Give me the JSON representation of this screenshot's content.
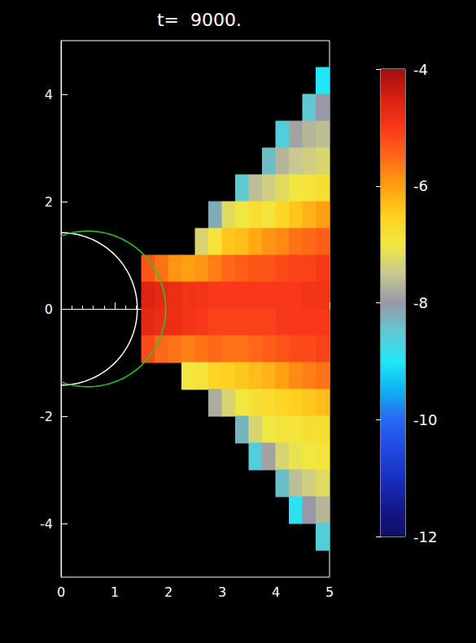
{
  "chart_data": {
    "type": "heatmap",
    "title": "t=  9000.",
    "xlim": [
      0,
      5
    ],
    "xticks": [
      0,
      1,
      2,
      3,
      4,
      5
    ],
    "ylim": [
      -5,
      5
    ],
    "yticks": [
      -4,
      -2,
      0,
      2,
      4
    ],
    "grid": false,
    "colorbar": {
      "range": [
        -12,
        -4
      ],
      "ticks": [
        -12,
        -10,
        -8,
        -6,
        -4
      ]
    },
    "circles": [
      {
        "center": [
          0,
          0
        ],
        "radius": 1.42,
        "color": "white"
      },
      {
        "center": [
          0.5,
          0
        ],
        "radius": 1.45,
        "color": "green"
      }
    ],
    "cells": [
      [
        1.625,
        0.75,
        -5.3
      ],
      [
        1.625,
        0.25,
        -4.6
      ],
      [
        1.625,
        -0.25,
        -4.7
      ],
      [
        1.625,
        -0.75,
        -5.2
      ],
      [
        1.875,
        0.75,
        -5.6
      ],
      [
        1.875,
        0.25,
        -4.7
      ],
      [
        1.875,
        -0.25,
        -4.8
      ],
      [
        1.875,
        -0.75,
        -5.5
      ],
      [
        2.125,
        0.75,
        -5.9
      ],
      [
        2.125,
        0.25,
        -4.8
      ],
      [
        2.125,
        -0.25,
        -4.8
      ],
      [
        2.125,
        -0.75,
        -5.6
      ],
      [
        2.375,
        0.75,
        -6.0
      ],
      [
        2.375,
        0.25,
        -4.9
      ],
      [
        2.375,
        -0.25,
        -4.9
      ],
      [
        2.375,
        -0.75,
        -5.7
      ],
      [
        2.375,
        -1.25,
        -7.0
      ],
      [
        2.625,
        1.25,
        -7.3
      ],
      [
        2.625,
        0.75,
        -5.9
      ],
      [
        2.625,
        0.25,
        -4.9
      ],
      [
        2.625,
        -0.25,
        -5.0
      ],
      [
        2.625,
        -0.75,
        -5.6
      ],
      [
        2.625,
        -1.25,
        -6.9
      ],
      [
        2.875,
        1.75,
        -8.2
      ],
      [
        2.875,
        1.25,
        -6.9
      ],
      [
        2.875,
        0.75,
        -5.7
      ],
      [
        2.875,
        0.25,
        -5.0
      ],
      [
        2.875,
        -0.25,
        -5.1
      ],
      [
        2.875,
        -0.75,
        -5.5
      ],
      [
        2.875,
        -1.25,
        -6.6
      ],
      [
        2.875,
        -1.75,
        -7.8
      ],
      [
        3.125,
        1.75,
        -7.2
      ],
      [
        3.125,
        1.25,
        -6.4
      ],
      [
        3.125,
        0.75,
        -5.5
      ],
      [
        3.125,
        0.25,
        -5.0
      ],
      [
        3.125,
        -0.25,
        -5.1
      ],
      [
        3.125,
        -0.75,
        -5.6
      ],
      [
        3.125,
        -1.25,
        -6.5
      ],
      [
        3.125,
        -1.75,
        -7.3
      ],
      [
        3.375,
        2.25,
        -8.5
      ],
      [
        3.375,
        1.75,
        -7.0
      ],
      [
        3.375,
        1.25,
        -6.3
      ],
      [
        3.375,
        0.75,
        -5.4
      ],
      [
        3.375,
        0.25,
        -5.0
      ],
      [
        3.375,
        -0.25,
        -5.1
      ],
      [
        3.375,
        -0.75,
        -5.6
      ],
      [
        3.375,
        -1.25,
        -6.4
      ],
      [
        3.375,
        -1.75,
        -7.0
      ],
      [
        3.375,
        -2.25,
        -8.3
      ],
      [
        3.625,
        2.25,
        -7.6
      ],
      [
        3.625,
        1.75,
        -6.8
      ],
      [
        3.625,
        1.25,
        -6.1
      ],
      [
        3.625,
        0.75,
        -5.3
      ],
      [
        3.625,
        0.25,
        -5.0
      ],
      [
        3.625,
        -0.25,
        -5.1
      ],
      [
        3.625,
        -0.75,
        -5.5
      ],
      [
        3.625,
        -1.25,
        -6.3
      ],
      [
        3.625,
        -1.75,
        -6.8
      ],
      [
        3.625,
        -2.25,
        -7.3
      ],
      [
        3.625,
        -2.75,
        -8.6
      ],
      [
        3.875,
        2.75,
        -8.4
      ],
      [
        3.875,
        2.25,
        -7.4
      ],
      [
        3.875,
        1.75,
        -6.9
      ],
      [
        3.875,
        1.25,
        -5.9
      ],
      [
        3.875,
        0.75,
        -5.3
      ],
      [
        3.875,
        0.25,
        -5.0
      ],
      [
        3.875,
        -0.25,
        -5.1
      ],
      [
        3.875,
        -0.75,
        -5.4
      ],
      [
        3.875,
        -1.25,
        -6.2
      ],
      [
        3.875,
        -1.75,
        -6.7
      ],
      [
        3.875,
        -2.25,
        -7.0
      ],
      [
        3.875,
        -2.75,
        -7.9
      ],
      [
        4.125,
        3.25,
        -8.6
      ],
      [
        4.125,
        2.75,
        -7.7
      ],
      [
        4.125,
        2.25,
        -7.2
      ],
      [
        4.125,
        1.75,
        -6.6
      ],
      [
        4.125,
        1.25,
        -5.8
      ],
      [
        4.125,
        0.75,
        -5.2
      ],
      [
        4.125,
        0.25,
        -5.0
      ],
      [
        4.125,
        -0.25,
        -5.0
      ],
      [
        4.125,
        -0.75,
        -5.3
      ],
      [
        4.125,
        -1.25,
        -6.0
      ],
      [
        4.125,
        -1.75,
        -6.6
      ],
      [
        4.125,
        -2.25,
        -6.9
      ],
      [
        4.125,
        -2.75,
        -7.3
      ],
      [
        4.125,
        -3.25,
        -8.4
      ],
      [
        4.375,
        3.25,
        -7.9
      ],
      [
        4.375,
        2.75,
        -7.5
      ],
      [
        4.375,
        2.25,
        -7.0
      ],
      [
        4.375,
        1.75,
        -6.4
      ],
      [
        4.375,
        1.25,
        -5.6
      ],
      [
        4.375,
        0.75,
        -5.1
      ],
      [
        4.375,
        0.25,
        -5.0
      ],
      [
        4.375,
        -0.25,
        -5.0
      ],
      [
        4.375,
        -0.75,
        -5.2
      ],
      [
        4.375,
        -1.25,
        -5.8
      ],
      [
        4.375,
        -1.75,
        -6.5
      ],
      [
        4.375,
        -2.25,
        -6.9
      ],
      [
        4.375,
        -2.75,
        -7.1
      ],
      [
        4.375,
        -3.25,
        -7.6
      ],
      [
        4.375,
        -3.75,
        -8.9
      ],
      [
        4.625,
        3.75,
        -8.5
      ],
      [
        4.625,
        3.25,
        -7.7
      ],
      [
        4.625,
        2.75,
        -7.4
      ],
      [
        4.625,
        2.25,
        -6.9
      ],
      [
        4.625,
        1.75,
        -6.2
      ],
      [
        4.625,
        1.25,
        -5.5
      ],
      [
        4.625,
        0.75,
        -5.1
      ],
      [
        4.625,
        0.25,
        -4.9
      ],
      [
        4.625,
        -0.25,
        -5.0
      ],
      [
        4.625,
        -0.75,
        -5.2
      ],
      [
        4.625,
        -1.25,
        -5.7
      ],
      [
        4.625,
        -1.75,
        -6.4
      ],
      [
        4.625,
        -2.25,
        -6.8
      ],
      [
        4.625,
        -2.75,
        -7.0
      ],
      [
        4.625,
        -3.25,
        -7.4
      ],
      [
        4.625,
        -3.75,
        -8.0
      ],
      [
        4.875,
        4.25,
        -9.0
      ],
      [
        4.875,
        3.75,
        -8.0
      ],
      [
        4.875,
        3.25,
        -7.6
      ],
      [
        4.875,
        2.75,
        -7.3
      ],
      [
        4.875,
        2.25,
        -6.8
      ],
      [
        4.875,
        1.75,
        -6.0
      ],
      [
        4.875,
        1.25,
        -5.4
      ],
      [
        4.875,
        0.75,
        -5.0
      ],
      [
        4.875,
        0.25,
        -4.9
      ],
      [
        4.875,
        -0.25,
        -5.0
      ],
      [
        4.875,
        -0.75,
        -5.1
      ],
      [
        4.875,
        -1.25,
        -5.6
      ],
      [
        4.875,
        -1.75,
        -6.3
      ],
      [
        4.875,
        -2.25,
        -6.8
      ],
      [
        4.875,
        -2.75,
        -6.9
      ],
      [
        4.875,
        -3.25,
        -7.2
      ],
      [
        4.875,
        -3.75,
        -7.7
      ],
      [
        4.875,
        -4.25,
        -8.6
      ]
    ]
  }
}
